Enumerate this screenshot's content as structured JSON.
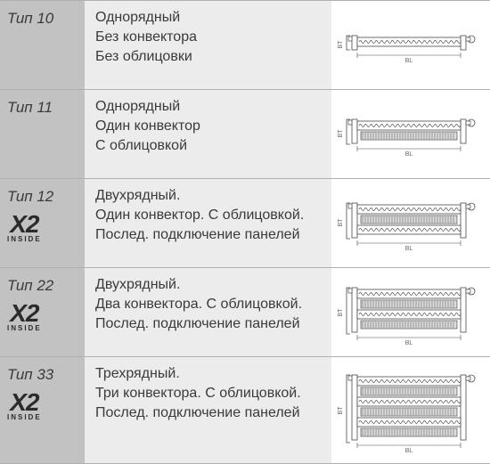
{
  "rows_style": {
    "type_col_bg": "#c2c2c2",
    "desc_col_bg": "#ececec",
    "diagram_col_bg": "#ffffff",
    "border_color": "#b0b0b0",
    "text_color": "#3a3a3a",
    "type_fontsize": 17,
    "desc_fontsize": 16
  },
  "x2_logo": {
    "main": "X2",
    "sub": "INSIDE",
    "main_color": "#2b2b2b",
    "sub_color": "#2b2b2b"
  },
  "rows": [
    {
      "type_label": "Тип 10",
      "has_x2": false,
      "desc": [
        "Однорядный",
        "Без конвектора",
        "Без облицовки"
      ],
      "diagram": {
        "panels": 1,
        "convectors": 0,
        "cladding": false
      }
    },
    {
      "type_label": "Тип 11",
      "has_x2": false,
      "desc": [
        "Однорядный",
        "Один конвектор",
        "С облицовкой"
      ],
      "diagram": {
        "panels": 1,
        "convectors": 1,
        "cladding": true
      }
    },
    {
      "type_label": "Тип 12",
      "has_x2": true,
      "desc": [
        "Двухрядный.",
        "Один конвектор. С облицовкой.",
        "Послед. подключение панелей"
      ],
      "diagram": {
        "panels": 2,
        "convectors": 1,
        "cladding": true
      }
    },
    {
      "type_label": "Тип 22",
      "has_x2": true,
      "desc": [
        "Двухрядный.",
        "Два конвектора. С облицовкой.",
        "Послед. подключение панелей"
      ],
      "diagram": {
        "panels": 2,
        "convectors": 2,
        "cladding": true
      }
    },
    {
      "type_label": "Тип 33",
      "has_x2": true,
      "desc": [
        "Трехрядный.",
        "Три конвектора. С облицовкой.",
        "Послед. подключение панелей"
      ],
      "diagram": {
        "panels": 3,
        "convectors": 3,
        "cladding": true
      }
    }
  ],
  "diagram_style": {
    "stroke": "#4a4a4a",
    "panel_fill": "#ffffff",
    "hatch_fill": "#dddddd",
    "valve_fill": "#ffffff",
    "label_BL": "BL",
    "label_BT": "BT",
    "label_fontsize": 7,
    "label_color": "#666666"
  }
}
